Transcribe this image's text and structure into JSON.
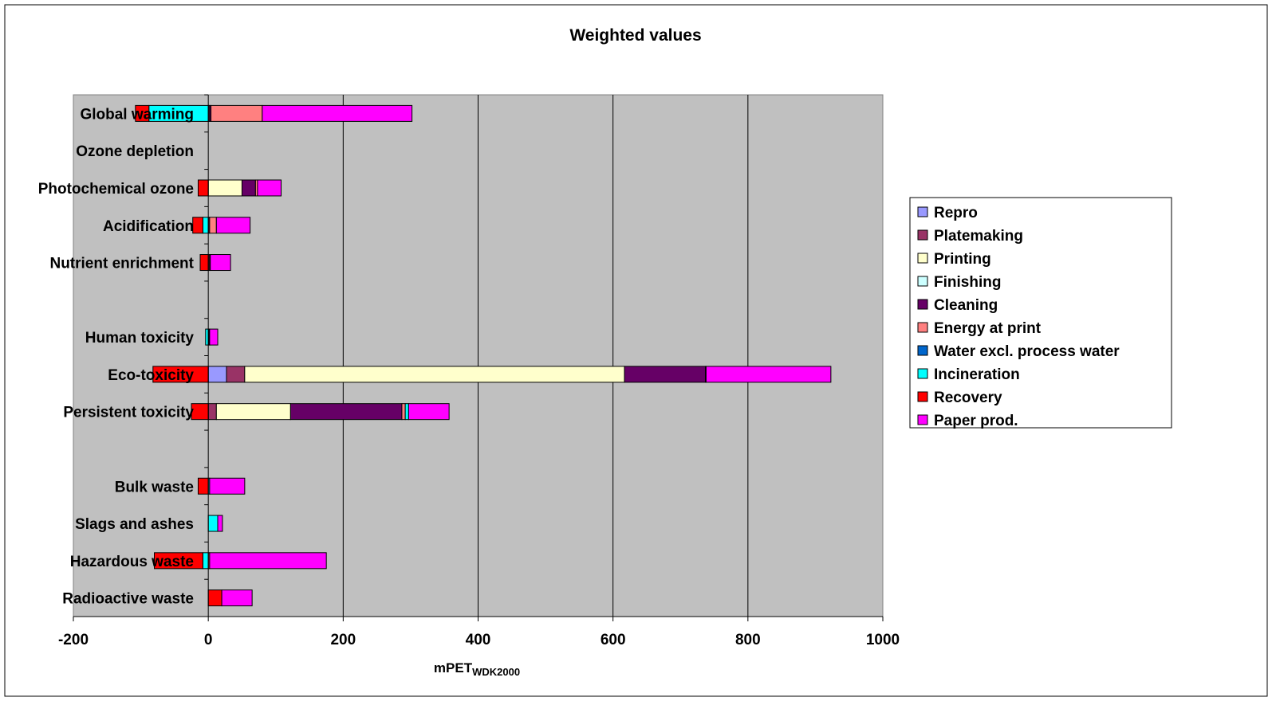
{
  "chart_data": {
    "type": "bar",
    "stacked": true,
    "orientation": "horizontal",
    "title": "Weighted values",
    "xlabel": "mPET",
    "xlabel_subscript": "WDK2000",
    "ylabel": "",
    "xlim": [
      -200,
      1000
    ],
    "xticks": [
      "-200",
      "0",
      "200",
      "400",
      "600",
      "800",
      "1000"
    ],
    "grid": "vertical",
    "legend_position": "right",
    "plot_background": "#c0c0c0",
    "categories": [
      "Global warming",
      "Ozone depletion",
      "Photochemical ozone",
      "Acidification",
      "Nutrient enrichment",
      "",
      "Human toxicity",
      "Eco-toxicity",
      "Persistent toxicity",
      "",
      "Bulk waste",
      "Slags and ashes",
      "Hazardous waste",
      "Radioactive waste"
    ],
    "series": [
      {
        "name": "Repro",
        "color": "#9999ff",
        "values": [
          0,
          0,
          0,
          0,
          0,
          null,
          0,
          27,
          0,
          null,
          0,
          0,
          0,
          0
        ]
      },
      {
        "name": "Platemaking",
        "color": "#993366",
        "values": [
          2,
          0,
          0,
          2,
          2,
          null,
          1,
          27,
          12,
          null,
          0,
          0,
          0,
          0
        ]
      },
      {
        "name": "Printing",
        "color": "#ffffcc",
        "values": [
          0,
          0,
          50,
          0,
          0,
          null,
          0,
          563,
          110,
          null,
          0,
          0,
          0,
          0
        ]
      },
      {
        "name": "Finishing",
        "color": "#ccffff",
        "values": [
          0,
          0,
          0,
          0,
          0,
          null,
          0,
          0,
          0,
          null,
          0,
          0,
          0,
          0
        ]
      },
      {
        "name": "Cleaning",
        "color": "#660066",
        "values": [
          2,
          0,
          20,
          0,
          0,
          null,
          1,
          120,
          165,
          null,
          0,
          0,
          0,
          0
        ]
      },
      {
        "name": "Energy at print",
        "color": "#ff8080",
        "values": [
          76,
          0,
          3,
          10,
          1,
          null,
          0,
          1,
          5,
          null,
          0,
          0,
          2,
          0
        ]
      },
      {
        "name": "Water excl. process water",
        "color": "#0066cc",
        "values": [
          0,
          0,
          0,
          0,
          0,
          null,
          0,
          0,
          0,
          null,
          0,
          0,
          0,
          0
        ]
      },
      {
        "name": "Incineration",
        "color": "#00ffff",
        "values": [
          -88,
          0,
          0,
          -8,
          0,
          null,
          -4,
          0,
          5,
          null,
          2,
          14,
          -8,
          0
        ]
      },
      {
        "name": "Recovery",
        "color": "#ff0000",
        "values": [
          -20,
          0,
          -15,
          -15,
          -12,
          null,
          0,
          -82,
          -25,
          null,
          -15,
          0,
          -72,
          20
        ]
      },
      {
        "name": "Paper prod.",
        "color": "#ff00ff",
        "values": [
          222,
          0,
          35,
          50,
          30,
          null,
          12,
          185,
          60,
          null,
          52,
          7,
          173,
          45
        ]
      }
    ]
  }
}
